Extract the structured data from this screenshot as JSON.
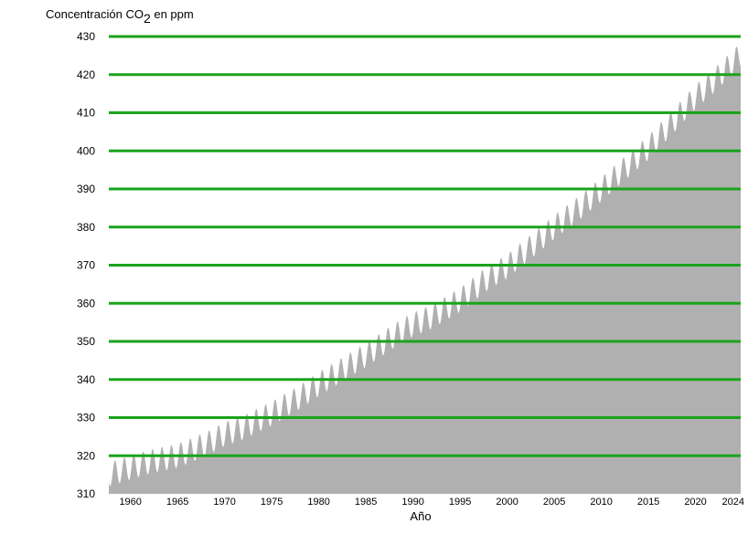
{
  "chart_data": {
    "type": "area",
    "title": "",
    "ylabel": {
      "prefix": "Concentración CO",
      "subscript": "2",
      "suffix": " en ppm"
    },
    "xlabel": "Año",
    "xlim": [
      1957.7,
      2024.8
    ],
    "ylim": [
      310,
      430
    ],
    "y_ticks": [
      "310",
      "320",
      "330",
      "340",
      "350",
      "360",
      "370",
      "380",
      "390",
      "400",
      "410",
      "420",
      "430"
    ],
    "x_ticks": [
      "1960",
      "1965",
      "1970",
      "1975",
      "1980",
      "1985",
      "1990",
      "1995",
      "2000",
      "2005",
      "2010",
      "2015",
      "2020",
      "2024"
    ],
    "grid": "horizontal",
    "fill_color": "#b0b0b0",
    "grid_color": "#1aa31a",
    "x": [
      1958,
      1960,
      1962,
      1965,
      1968,
      1970,
      1972,
      1975,
      1978,
      1980,
      1983,
      1985,
      1988,
      1990,
      1992,
      1995,
      1998,
      2000,
      2003,
      2005,
      2008,
      2010,
      2013,
      2015,
      2018,
      2020,
      2022,
      2024.5
    ],
    "series": [
      {
        "values": [
          315.3,
          316.9,
          318.4,
          320.0,
          323.0,
          325.7,
          327.4,
          331.1,
          335.4,
          338.8,
          343.4,
          346.4,
          351.5,
          354.4,
          356.5,
          360.9,
          366.7,
          369.7,
          375.8,
          380.0,
          385.7,
          389.9,
          396.5,
          400.8,
          408.7,
          414.2,
          418.5,
          424.5
        ]
      }
    ],
    "seasonal_amplitude_ppm": 3.2
  }
}
